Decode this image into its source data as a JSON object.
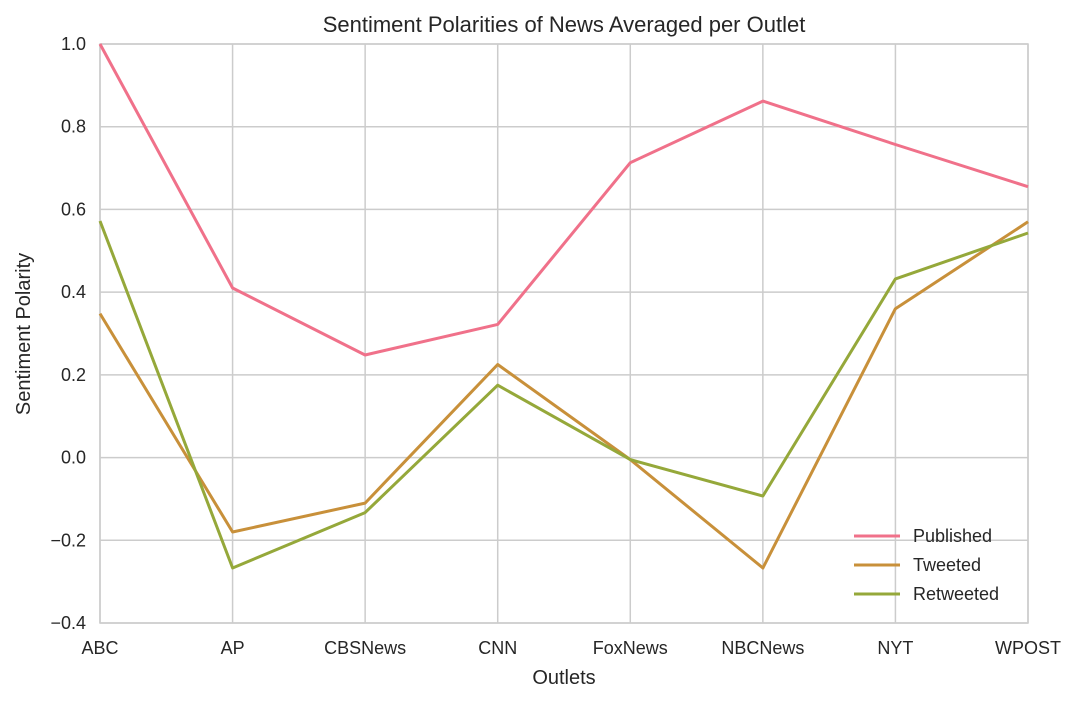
{
  "chart_data": {
    "type": "line",
    "title": "Sentiment Polarities of News Averaged per Outlet",
    "xlabel": "Outlets",
    "ylabel": "Sentiment Polarity",
    "categories": [
      "ABC",
      "AP",
      "CBSNews",
      "CNN",
      "FoxNews",
      "NBCNews",
      "NYT",
      "WPOST"
    ],
    "ylim": [
      -0.4,
      1.0
    ],
    "yticks": [
      -0.4,
      -0.2,
      0.0,
      0.2,
      0.4,
      0.6,
      0.8,
      1.0
    ],
    "ytick_labels": [
      "−0.4",
      "−0.2",
      "0.0",
      "0.2",
      "0.4",
      "0.6",
      "0.8",
      "1.0"
    ],
    "grid": true,
    "legend_position": "bottom-right",
    "series": [
      {
        "name": "Published",
        "color": "#f0718a",
        "values": [
          1.0,
          0.41,
          0.248,
          0.322,
          0.713,
          0.862,
          0.757,
          0.655
        ]
      },
      {
        "name": "Tweeted",
        "color": "#c8903a",
        "values": [
          0.348,
          -0.18,
          -0.11,
          0.225,
          -0.005,
          -0.267,
          0.36,
          0.57
        ]
      },
      {
        "name": "Retweeted",
        "color": "#95a83a",
        "values": [
          0.572,
          -0.267,
          -0.133,
          0.175,
          -0.005,
          -0.093,
          0.432,
          0.543
        ]
      }
    ]
  }
}
